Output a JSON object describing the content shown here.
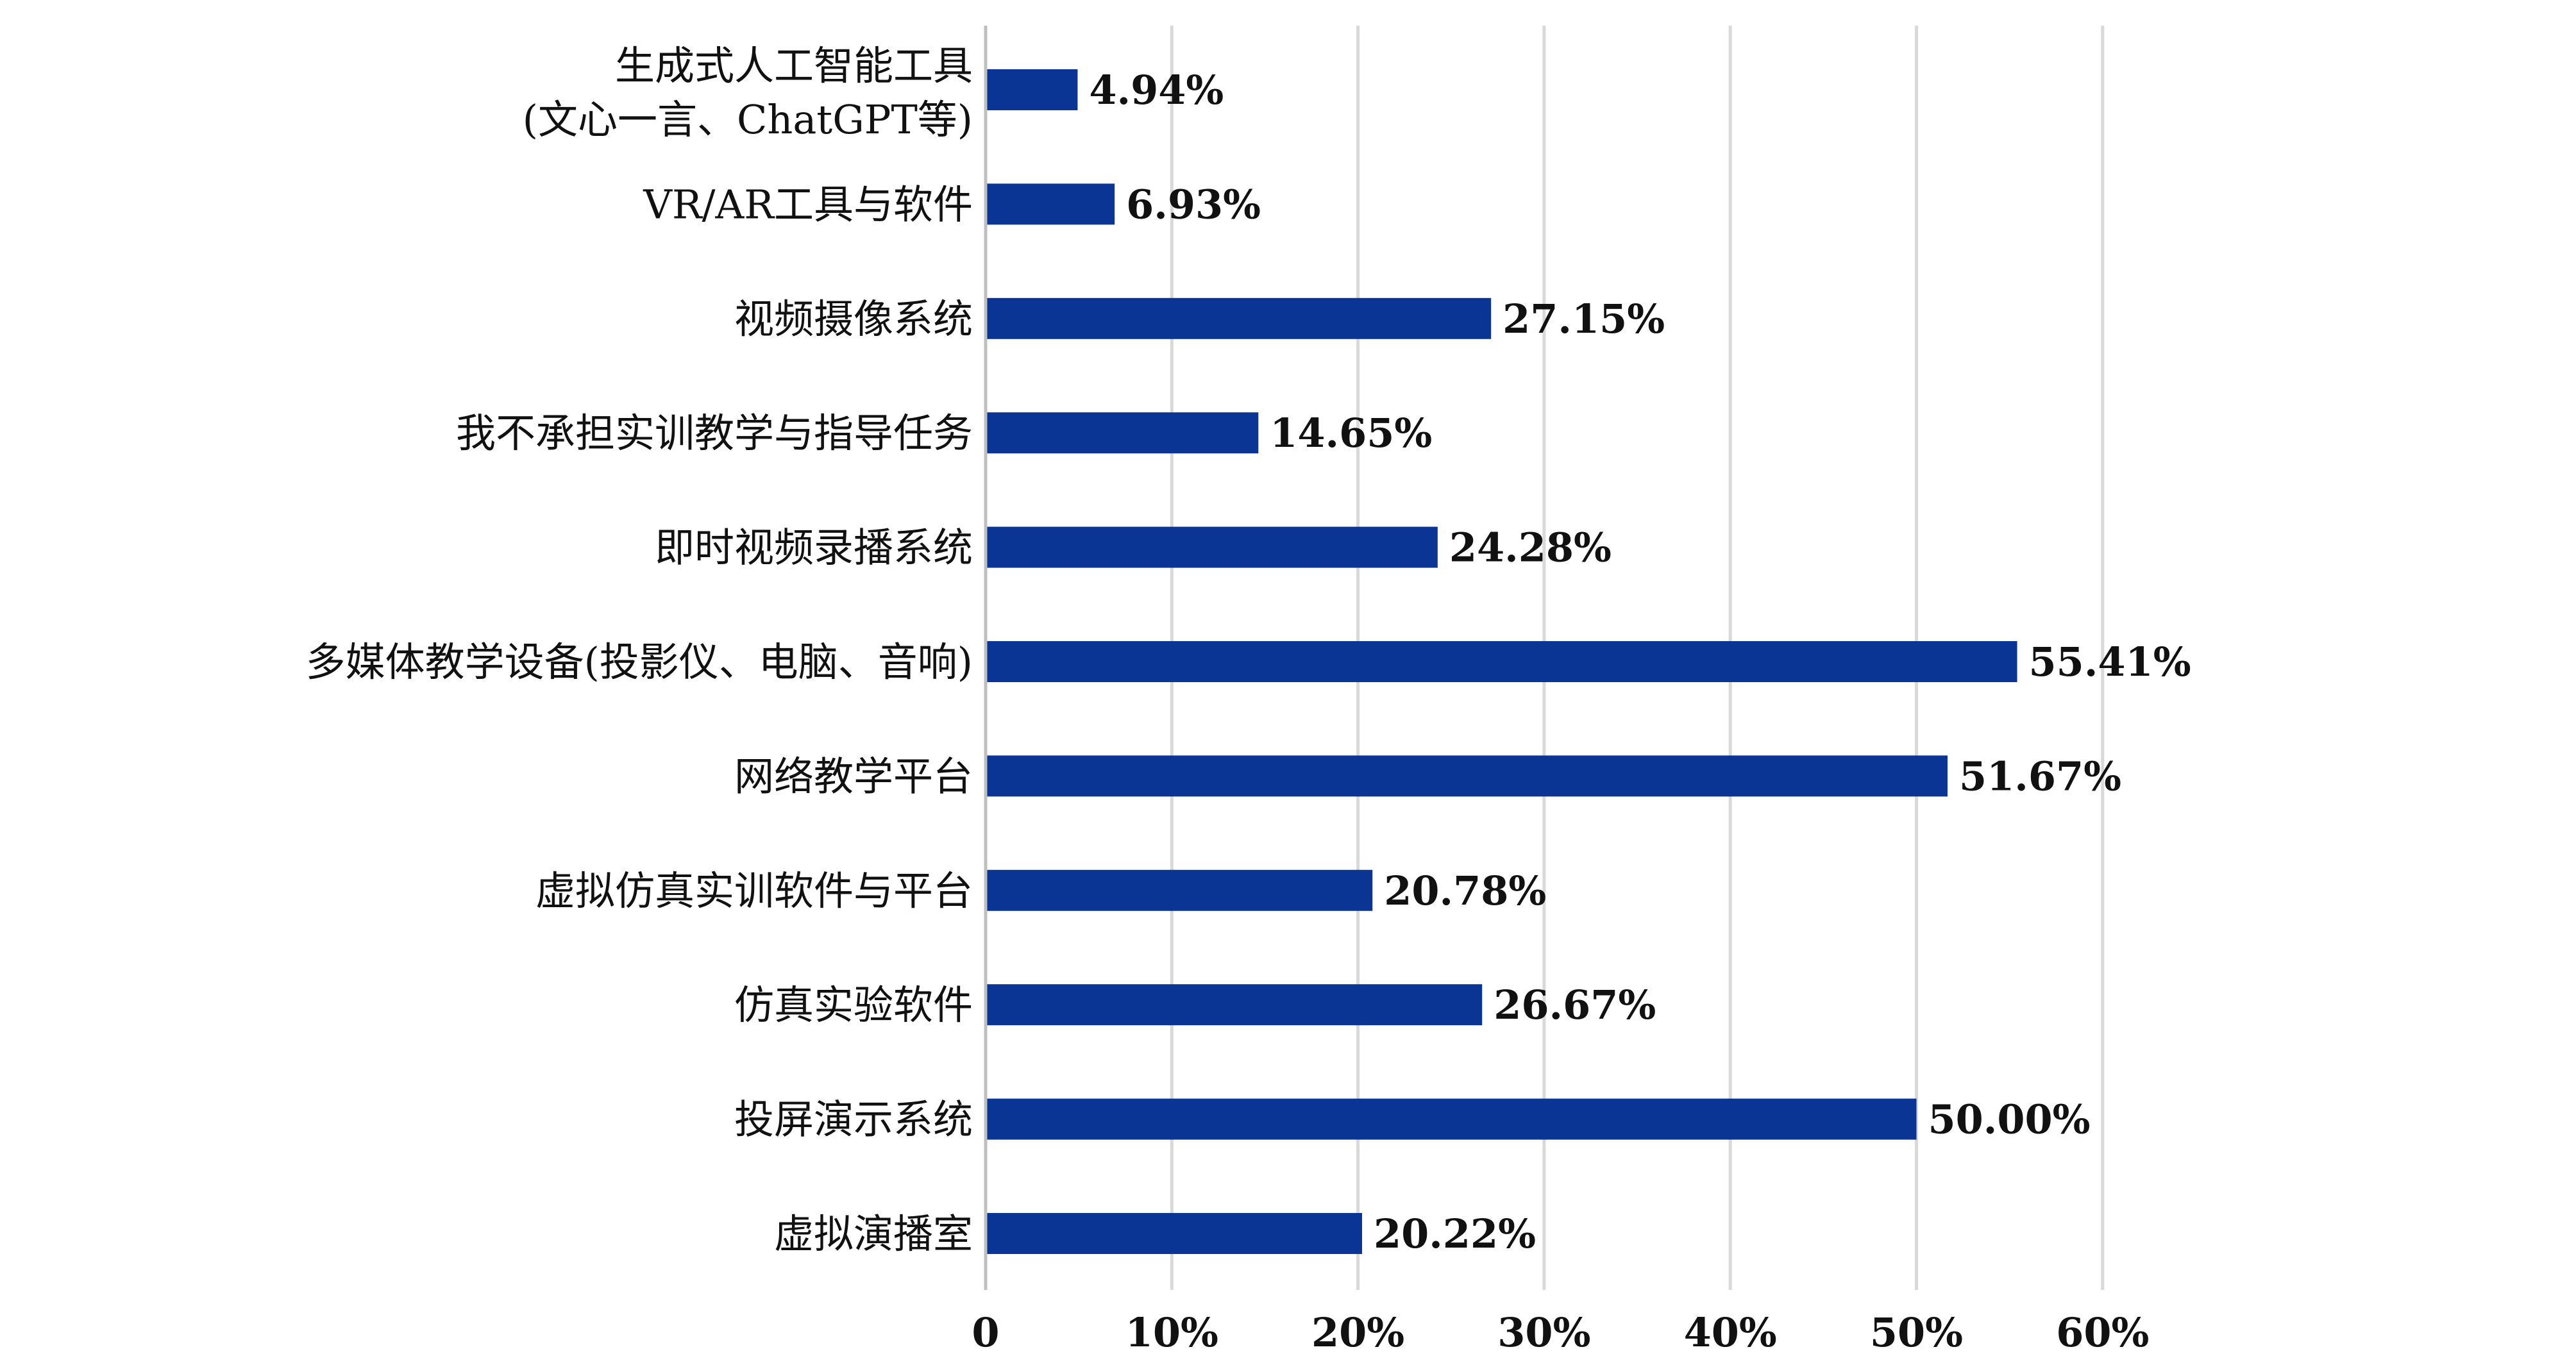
{
  "chart_data": {
    "type": "bar",
    "orientation": "horizontal",
    "categories": [
      [
        "生成式人工智能工具",
        "(文心一言、ChatGPT等)"
      ],
      [
        "VR/AR工具与软件"
      ],
      [
        "视频摄像系统"
      ],
      [
        "我不承担实训教学与指导任务"
      ],
      [
        "即时视频录播系统"
      ],
      [
        "多媒体教学设备(投影仪、电脑、音响)"
      ],
      [
        "网络教学平台"
      ],
      [
        "虚拟仿真实训软件与平台"
      ],
      [
        "仿真实验软件"
      ],
      [
        "投屏演示系统"
      ],
      [
        "虚拟演播室"
      ]
    ],
    "values": [
      4.94,
      6.93,
      27.15,
      14.65,
      24.28,
      55.41,
      51.67,
      20.78,
      26.67,
      50.0,
      20.22
    ],
    "value_labels": [
      "4.94%",
      "6.93%",
      "27.15%",
      "14.65%",
      "24.28%",
      "55.41%",
      "51.67%",
      "20.78%",
      "26.67%",
      "50.00%",
      "20.22%"
    ],
    "xlim": [
      0,
      60
    ],
    "x_ticks": [
      0,
      10,
      20,
      30,
      40,
      50,
      60
    ],
    "x_tick_labels": [
      "0",
      "10%",
      "20%",
      "30%",
      "40%",
      "50%",
      "60%"
    ],
    "grid": "vertical",
    "bar_color": "#0a3595",
    "grid_color": "#d9d9d9",
    "axis_color": "#bfbfbf",
    "title": "",
    "xlabel": "",
    "ylabel": ""
  }
}
